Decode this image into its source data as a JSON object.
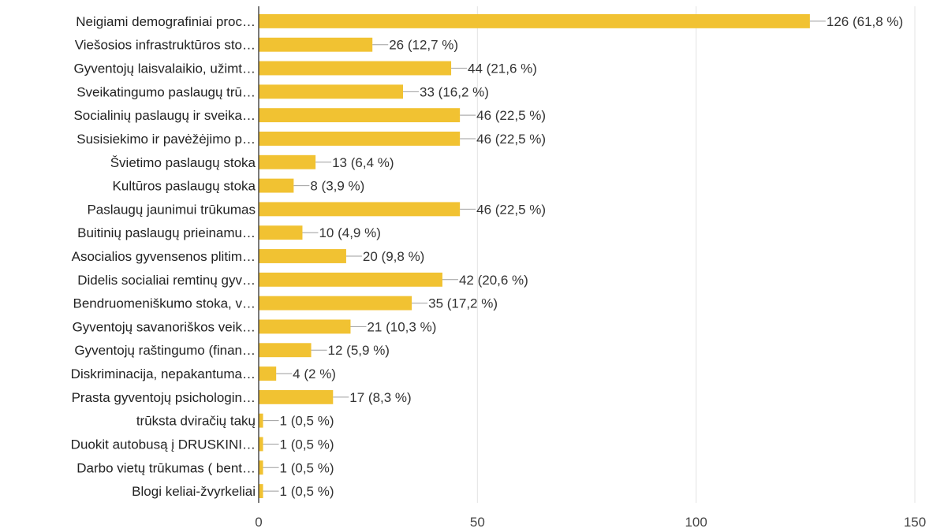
{
  "chart_data": {
    "type": "bar",
    "orientation": "horizontal",
    "categories": [
      "Neigiami demografiniai proc…",
      "Viešosios infrastruktūros sto…",
      "Gyventojų laisvalaikio, užimt…",
      "Sveikatingumo paslaugų trū…",
      "Socialinių paslaugų ir sveika…",
      "Susisiekimo ir pavėžėjimo p…",
      "Švietimo paslaugų stoka",
      "Kultūros paslaugų stoka",
      "Paslaugų jaunimui trūkumas",
      "Buitinių paslaugų prieinamu…",
      "Asocialios gyvensenos plitim…",
      "Didelis socialiai remtinų gyv…",
      "Bendruomeniškumo stoka, v…",
      "Gyventojų savanoriškos veik…",
      "Gyventojų raštingumo (finan…",
      "Diskriminacija, nepakantuma…",
      "Prasta gyventojų psichologin…",
      "trūksta dviračių takų",
      "Duokit autobusą į DRUSKINI…",
      "Darbo vietų trūkumas ( bent…",
      "Blogi keliai-žvyrkeliai"
    ],
    "values": [
      126,
      26,
      44,
      33,
      46,
      46,
      13,
      8,
      46,
      10,
      20,
      42,
      35,
      21,
      12,
      4,
      17,
      1,
      1,
      1,
      1
    ],
    "value_labels": [
      "126 (61,8 %)",
      "26 (12,7 %)",
      "44 (21,6 %)",
      "33 (16,2 %)",
      "46 (22,5 %)",
      "46 (22,5 %)",
      "13 (6,4 %)",
      "8 (3,9 %)",
      "46 (22,5 %)",
      "10 (4,9 %)",
      "20 (9,8 %)",
      "42 (20,6 %)",
      "35 (17,2 %)",
      "21 (10,3 %)",
      "12 (5,9 %)",
      "4 (2 %)",
      "17 (8,3 %)",
      "1 (0,5 %)",
      "1 (0,5 %)",
      "1 (0,5 %)",
      "1 (0,5 %)"
    ],
    "xlim": [
      0,
      150
    ],
    "xticks": [
      0,
      50,
      100,
      150
    ],
    "xtick_labels": [
      "0",
      "50",
      "100",
      "150"
    ],
    "grid": true,
    "bar_color": "#f1c232",
    "title": "",
    "xlabel": "",
    "ylabel": ""
  }
}
